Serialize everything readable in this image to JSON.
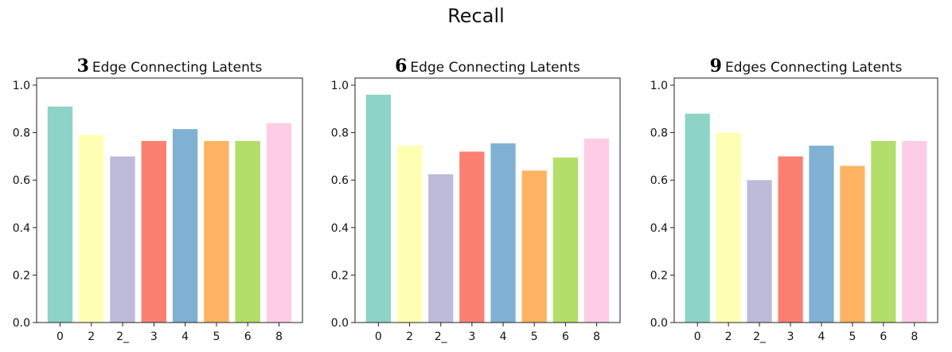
{
  "figure_title": "Recall",
  "chart_data": [
    {
      "type": "bar",
      "title_number": "3",
      "title": "Edge Connecting Latents",
      "categories": [
        "0",
        "2",
        "2_",
        "3",
        "4",
        "5",
        "6",
        "8"
      ],
      "values": [
        0.91,
        0.79,
        0.7,
        0.765,
        0.815,
        0.765,
        0.765,
        0.84
      ],
      "colors": [
        "#8dd3c7",
        "#ffffb3",
        "#bebada",
        "#fb8072",
        "#80b1d3",
        "#fdb462",
        "#b3de69",
        "#fccde5"
      ],
      "yticks": [
        "0.0",
        "0.2",
        "0.4",
        "0.6",
        "0.8",
        "1.0"
      ],
      "ylim": [
        0,
        1.03
      ]
    },
    {
      "type": "bar",
      "title_number": "6",
      "title": "Edge Connecting Latents",
      "categories": [
        "0",
        "2",
        "2_",
        "3",
        "4",
        "5",
        "6",
        "8"
      ],
      "values": [
        0.96,
        0.745,
        0.625,
        0.72,
        0.755,
        0.64,
        0.695,
        0.775
      ],
      "colors": [
        "#8dd3c7",
        "#ffffb3",
        "#bebada",
        "#fb8072",
        "#80b1d3",
        "#fdb462",
        "#b3de69",
        "#fccde5"
      ],
      "yticks": [
        "0.0",
        "0.2",
        "0.4",
        "0.6",
        "0.8",
        "1.0"
      ],
      "ylim": [
        0,
        1.03
      ]
    },
    {
      "type": "bar",
      "title_number": "9",
      "title": "Edges Connecting Latents",
      "categories": [
        "0",
        "2",
        "2_",
        "3",
        "4",
        "5",
        "6",
        "8"
      ],
      "values": [
        0.88,
        0.8,
        0.6,
        0.7,
        0.745,
        0.66,
        0.765,
        0.765
      ],
      "colors": [
        "#8dd3c7",
        "#ffffb3",
        "#bebada",
        "#fb8072",
        "#80b1d3",
        "#fdb462",
        "#b3de69",
        "#fccde5"
      ],
      "yticks": [
        "0.0",
        "0.2",
        "0.4",
        "0.6",
        "0.8",
        "1.0"
      ],
      "ylim": [
        0,
        1.03
      ]
    }
  ]
}
